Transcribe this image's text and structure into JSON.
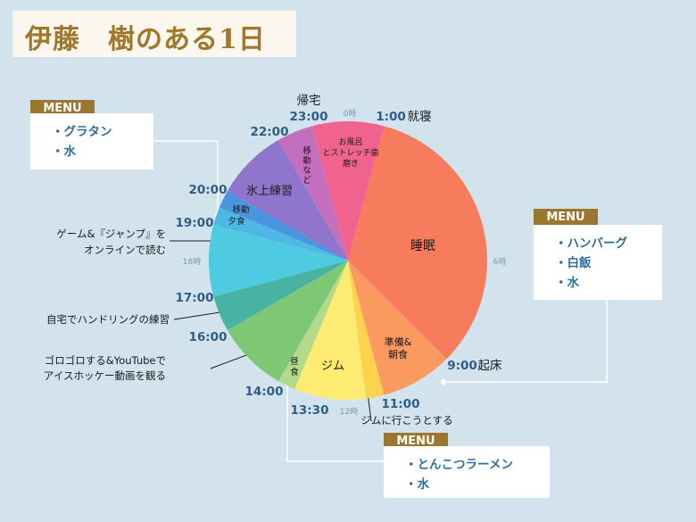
{
  "title": "伊藤　樹のある1日",
  "menus": [
    {
      "id": "dinner",
      "tab": "MENU",
      "items": [
        "・グラタン",
        "・水"
      ]
    },
    {
      "id": "breakfast",
      "tab": "MENU",
      "items": [
        "・ハンバーグ",
        "・白飯",
        "・水"
      ]
    },
    {
      "id": "lunch",
      "tab": "MENU",
      "items": [
        "・とんこつラーメン",
        "・水"
      ]
    }
  ],
  "time_labels": {
    "t23": "23:00",
    "t1": "1:00",
    "t22": "22:00",
    "t20": "20:00",
    "t19": "19:00",
    "t17": "17:00",
    "t16": "16:00",
    "t14": "14:00",
    "t1330": "13:30",
    "t11": "11:00",
    "t9": "9:00"
  },
  "hour_marks": {
    "h0": "0時",
    "h6": "6時",
    "h12": "12時",
    "h18": "18時"
  },
  "events": {
    "return_home": "帰宅",
    "sleep_start": "就寝",
    "wake_up": "起床"
  },
  "annotations": {
    "game": [
      "ゲーム&『ジャンプ』を",
      "オンラインで読む"
    ],
    "handling": "自宅でハンドリングの練習",
    "goro": [
      "ゴロゴロする&YouTubeで",
      "アイスホッケー動画を観る"
    ],
    "gym_go": "ジムに行こうとする"
  },
  "chart_data": {
    "type": "pie",
    "title": "伊藤　樹のある1日",
    "unit": "hours (24h clock)",
    "segments": [
      {
        "label": "睡眠",
        "start": 1,
        "end": 9,
        "color": "#f77c5e"
      },
      {
        "label": "準備&朝食",
        "start": 9,
        "end": 11,
        "color": "#fb9a60"
      },
      {
        "label": "ジムに行こうとする",
        "start": 11,
        "end": 11.5,
        "color": "#fdd24d"
      },
      {
        "label": "ジム",
        "start": 11.5,
        "end": 13.5,
        "color": "#fdeb72"
      },
      {
        "label": "昼食",
        "start": 13.5,
        "end": 14,
        "color": "#b3d98a"
      },
      {
        "label": "ゴロゴロする&YouTubeでアイスホッケー動画を観る",
        "start": 14,
        "end": 16,
        "color": "#7dc775"
      },
      {
        "label": "自宅でハンドリングの練習",
        "start": 16,
        "end": 17,
        "color": "#48b3a2"
      },
      {
        "label": "ゲーム&『ジャンプ』をオンラインで読む",
        "start": 17,
        "end": 19,
        "color": "#4ecbe0"
      },
      {
        "label": "夕食",
        "start": 19,
        "end": 19.5,
        "color": "#4eb7e5"
      },
      {
        "label": "移動",
        "start": 19.5,
        "end": 20,
        "color": "#4a95e0"
      },
      {
        "label": "氷上練習",
        "start": 20,
        "end": 22,
        "color": "#9075cd"
      },
      {
        "label": "移動など",
        "start": 22,
        "end": 23,
        "color": "#c46fbe"
      },
      {
        "label": "お風呂とストレッチ歯磨き",
        "start": 23,
        "end": 25,
        "color": "#f1638f"
      }
    ]
  }
}
